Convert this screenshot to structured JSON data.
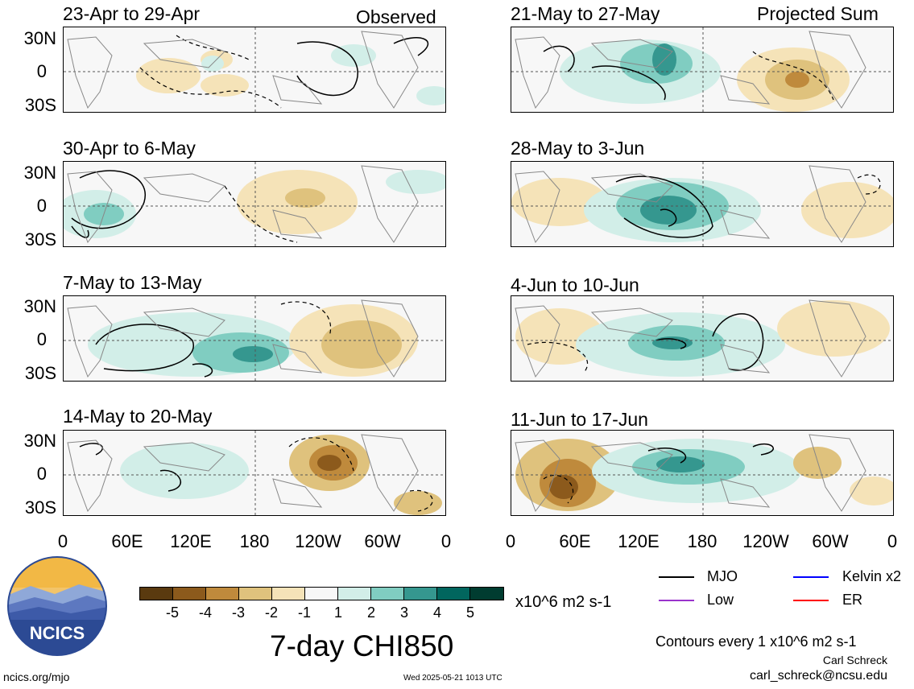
{
  "panels": [
    {
      "title": "23-Apr to 29-Apr",
      "tag": "Observed"
    },
    {
      "title": "30-Apr to 6-May"
    },
    {
      "title": "7-May to 13-May"
    },
    {
      "title": "14-May to 20-May"
    },
    {
      "title": "21-May to 27-May",
      "tag": "Projected Sum"
    },
    {
      "title": "28-May to 3-Jun"
    },
    {
      "title": "4-Jun to 10-Jun"
    },
    {
      "title": "11-Jun to 17-Jun"
    }
  ],
  "lat_labels": [
    "30N",
    "0",
    "30S"
  ],
  "lon_labels": [
    "0",
    "60E",
    "120E",
    "180",
    "120W",
    "60W",
    "0"
  ],
  "colorbar": {
    "colors": [
      "#5a3a0f",
      "#8c5a1c",
      "#bf8a3c",
      "#dfc27d",
      "#f5e3b8",
      "#f7f7f7",
      "#d2eee8",
      "#80cdc1",
      "#35978f",
      "#01665e",
      "#003c30"
    ],
    "labels": [
      "-5",
      "-4",
      "-3",
      "-2",
      "-1",
      "1",
      "2",
      "3",
      "4",
      "5"
    ],
    "units": "x10^6 m2 s-1"
  },
  "legend": [
    {
      "label": "MJO",
      "color": "#000000"
    },
    {
      "label": "Kelvin x2",
      "color": "#0000ff"
    },
    {
      "label": "Low",
      "color": "#9933cc"
    },
    {
      "label": "ER",
      "color": "#ff0000"
    }
  ],
  "main_title": "7-day CHI850",
  "contours_note": "Contours every 1 x10^6 m2 s-1",
  "author": "Carl Schreck",
  "email": "carl_schreck@ncsu.edu",
  "site": "ncics.org/mjo",
  "timestamp": "Wed 2025-05-21 1013 UTC",
  "logo_text": "NCICS"
}
